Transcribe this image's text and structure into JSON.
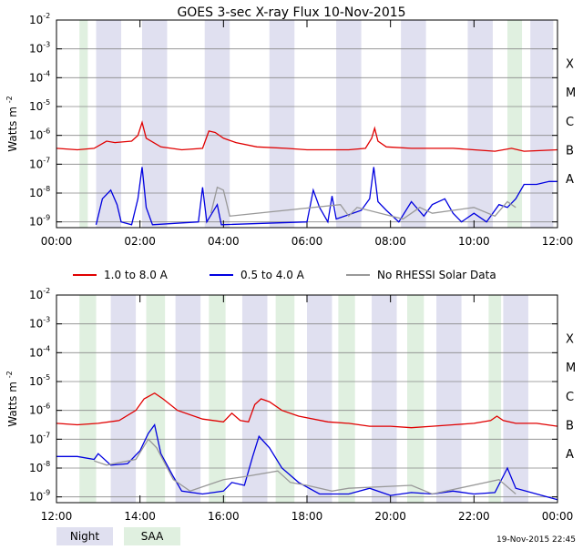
{
  "title": "GOES 3-sec X-ray Flux   10-Nov-2015",
  "ylabel": "Watts m",
  "ylabel_sup": "-2",
  "timestamp": "19-Nov-2015 22:45",
  "yticks": [
    {
      "exp": "-2",
      "value": -2
    },
    {
      "exp": "-3",
      "value": -3
    },
    {
      "exp": "-4",
      "value": -4
    },
    {
      "exp": "-5",
      "value": -5
    },
    {
      "exp": "-6",
      "value": -6
    },
    {
      "exp": "-7",
      "value": -7
    },
    {
      "exp": "-8",
      "value": -8
    },
    {
      "exp": "-9",
      "value": -9
    }
  ],
  "flare_classes": [
    {
      "label": "X",
      "value": -3.5
    },
    {
      "label": "M",
      "value": -4.5
    },
    {
      "label": "C",
      "value": -5.5
    },
    {
      "label": "B",
      "value": -6.5
    },
    {
      "label": "A",
      "value": -7.5
    }
  ],
  "legend": [
    {
      "label": "1.0 to 8.0 A",
      "color": "#e00000"
    },
    {
      "label": "0.5 to 4.0 A",
      "color": "#0000e0"
    },
    {
      "label": "No RHESSI Solar Data",
      "color": "#999999"
    }
  ],
  "bottom_legend": [
    {
      "label": "Night",
      "color": "#e0e0f0"
    },
    {
      "label": "SAA",
      "color": "#e0f0e0"
    }
  ],
  "chart_data": [
    {
      "type": "line",
      "title": "GOES 3-sec X-ray Flux   10-Nov-2015",
      "ylabel": "Watts m^-2",
      "yscale": "log",
      "ylim": [
        -9.2,
        -2
      ],
      "xlim_hours": [
        0,
        12
      ],
      "xticks": [
        "00:00",
        "02:00",
        "04:00",
        "06:00",
        "08:00",
        "10:00",
        "12:00"
      ],
      "night_bands": [
        [
          0.95,
          1.55
        ],
        [
          2.05,
          2.65
        ],
        [
          3.55,
          4.15
        ],
        [
          5.1,
          5.7
        ],
        [
          6.7,
          7.3
        ],
        [
          8.25,
          8.85
        ],
        [
          9.85,
          10.45
        ],
        [
          11.35,
          11.9
        ]
      ],
      "saa_bands": [
        [
          0.55,
          0.75
        ],
        [
          10.8,
          11.15
        ]
      ],
      "series": [
        {
          "name": "1.0 to 8.0 A",
          "color": "#e00000",
          "points": [
            [
              0,
              -6.45
            ],
            [
              0.5,
              -6.5
            ],
            [
              0.9,
              -6.45
            ],
            [
              1.2,
              -6.2
            ],
            [
              1.4,
              -6.25
            ],
            [
              1.8,
              -6.2
            ],
            [
              1.95,
              -6.0
            ],
            [
              2.05,
              -5.55
            ],
            [
              2.15,
              -6.1
            ],
            [
              2.5,
              -6.4
            ],
            [
              3.0,
              -6.5
            ],
            [
              3.5,
              -6.45
            ],
            [
              3.65,
              -5.85
            ],
            [
              3.8,
              -5.9
            ],
            [
              4.0,
              -6.1
            ],
            [
              4.3,
              -6.25
            ],
            [
              4.8,
              -6.4
            ],
            [
              5.5,
              -6.45
            ],
            [
              6.0,
              -6.5
            ],
            [
              6.5,
              -6.5
            ],
            [
              7.0,
              -6.5
            ],
            [
              7.4,
              -6.45
            ],
            [
              7.55,
              -6.1
            ],
            [
              7.62,
              -5.75
            ],
            [
              7.7,
              -6.2
            ],
            [
              7.9,
              -6.4
            ],
            [
              8.5,
              -6.45
            ],
            [
              9.0,
              -6.45
            ],
            [
              9.5,
              -6.45
            ],
            [
              10.0,
              -6.5
            ],
            [
              10.5,
              -6.55
            ],
            [
              10.9,
              -6.45
            ],
            [
              11.2,
              -6.55
            ],
            [
              12.0,
              -6.5
            ]
          ]
        },
        {
          "name": "0.5 to 4.0 A",
          "color": "#0000e0",
          "points": [
            [
              0.95,
              -9.1
            ],
            [
              1.1,
              -8.2
            ],
            [
              1.3,
              -7.9
            ],
            [
              1.45,
              -8.4
            ],
            [
              1.55,
              -9.0
            ],
            [
              1.8,
              -9.1
            ],
            [
              1.95,
              -8.2
            ],
            [
              2.05,
              -7.1
            ],
            [
              2.15,
              -8.5
            ],
            [
              2.3,
              -9.1
            ],
            [
              3.4,
              -9.0
            ],
            [
              3.5,
              -7.8
            ],
            [
              3.6,
              -9.0
            ],
            [
              3.85,
              -8.4
            ],
            [
              3.95,
              -9.1
            ],
            [
              6.0,
              -9.0
            ],
            [
              6.15,
              -7.9
            ],
            [
              6.3,
              -8.5
            ],
            [
              6.5,
              -9.0
            ],
            [
              6.6,
              -8.1
            ],
            [
              6.7,
              -8.9
            ],
            [
              7.3,
              -8.6
            ],
            [
              7.5,
              -8.2
            ],
            [
              7.6,
              -7.1
            ],
            [
              7.7,
              -8.3
            ],
            [
              7.9,
              -8.6
            ],
            [
              8.2,
              -9.0
            ],
            [
              8.5,
              -8.3
            ],
            [
              8.8,
              -8.8
            ],
            [
              9.0,
              -8.4
            ],
            [
              9.3,
              -8.2
            ],
            [
              9.5,
              -8.7
            ],
            [
              9.7,
              -9.0
            ],
            [
              10.0,
              -8.7
            ],
            [
              10.3,
              -9.0
            ],
            [
              10.6,
              -8.4
            ],
            [
              10.8,
              -8.5
            ],
            [
              11.0,
              -8.2
            ],
            [
              11.2,
              -7.7
            ],
            [
              11.5,
              -7.7
            ],
            [
              11.8,
              -7.6
            ],
            [
              12.0,
              -7.6
            ]
          ]
        },
        {
          "name": "No RHESSI Solar Data",
          "color": "#999999",
          "points": [
            [
              3.7,
              -8.7
            ],
            [
              3.85,
              -7.8
            ],
            [
              4.0,
              -7.9
            ],
            [
              4.15,
              -8.8
            ],
            [
              6.8,
              -8.4
            ],
            [
              7.0,
              -8.8
            ],
            [
              7.2,
              -8.5
            ],
            [
              8.3,
              -8.9
            ],
            [
              8.7,
              -8.5
            ],
            [
              9.0,
              -8.7
            ],
            [
              10.0,
              -8.5
            ],
            [
              10.5,
              -8.8
            ],
            [
              10.8,
              -8.3
            ],
            [
              11.0,
              -8.5
            ]
          ]
        }
      ]
    },
    {
      "type": "line",
      "title": "",
      "ylabel": "Watts m^-2",
      "yscale": "log",
      "ylim": [
        -9.2,
        -2
      ],
      "xlim_hours": [
        12,
        24
      ],
      "xticks": [
        "12:00",
        "14:00",
        "16:00",
        "18:00",
        "20:00",
        "22:00",
        "00:00"
      ],
      "night_bands": [
        [
          13.3,
          13.9
        ],
        [
          14.85,
          15.45
        ],
        [
          16.45,
          17.05
        ],
        [
          18.0,
          18.6
        ],
        [
          19.55,
          20.15
        ],
        [
          21.1,
          21.7
        ],
        [
          22.7,
          23.3
        ]
      ],
      "saa_bands": [
        [
          12.55,
          12.95
        ],
        [
          14.15,
          14.6
        ],
        [
          15.65,
          16.05
        ],
        [
          17.25,
          17.7
        ],
        [
          18.75,
          19.15
        ],
        [
          20.4,
          20.8
        ],
        [
          22.35,
          22.65
        ]
      ],
      "series": [
        {
          "name": "1.0 to 8.0 A",
          "color": "#e00000",
          "points": [
            [
              12.0,
              -6.45
            ],
            [
              12.5,
              -6.5
            ],
            [
              13.0,
              -6.45
            ],
            [
              13.5,
              -6.35
            ],
            [
              13.9,
              -6.0
            ],
            [
              14.1,
              -5.6
            ],
            [
              14.35,
              -5.4
            ],
            [
              14.55,
              -5.6
            ],
            [
              14.9,
              -6.0
            ],
            [
              15.5,
              -6.3
            ],
            [
              16.0,
              -6.4
            ],
            [
              16.2,
              -6.1
            ],
            [
              16.4,
              -6.35
            ],
            [
              16.6,
              -6.4
            ],
            [
              16.75,
              -5.8
            ],
            [
              16.9,
              -5.6
            ],
            [
              17.1,
              -5.7
            ],
            [
              17.4,
              -6.0
            ],
            [
              17.8,
              -6.2
            ],
            [
              18.5,
              -6.4
            ],
            [
              19.0,
              -6.45
            ],
            [
              19.5,
              -6.55
            ],
            [
              20.0,
              -6.55
            ],
            [
              20.5,
              -6.6
            ],
            [
              21.0,
              -6.55
            ],
            [
              21.5,
              -6.5
            ],
            [
              22.0,
              -6.45
            ],
            [
              22.4,
              -6.35
            ],
            [
              22.55,
              -6.2
            ],
            [
              22.7,
              -6.35
            ],
            [
              23.0,
              -6.45
            ],
            [
              23.5,
              -6.45
            ],
            [
              24.0,
              -6.55
            ]
          ]
        },
        {
          "name": "0.5 to 4.0 A",
          "color": "#0000e0",
          "points": [
            [
              12.0,
              -7.6
            ],
            [
              12.5,
              -7.6
            ],
            [
              12.9,
              -7.7
            ],
            [
              13.0,
              -7.5
            ],
            [
              13.3,
              -7.9
            ],
            [
              13.7,
              -7.85
            ],
            [
              14.0,
              -7.4
            ],
            [
              14.2,
              -6.8
            ],
            [
              14.35,
              -6.5
            ],
            [
              14.5,
              -7.5
            ],
            [
              14.8,
              -8.3
            ],
            [
              15.0,
              -8.8
            ],
            [
              15.5,
              -8.9
            ],
            [
              16.0,
              -8.8
            ],
            [
              16.2,
              -8.5
            ],
            [
              16.5,
              -8.6
            ],
            [
              16.7,
              -7.6
            ],
            [
              16.85,
              -6.9
            ],
            [
              17.1,
              -7.3
            ],
            [
              17.4,
              -8.0
            ],
            [
              17.8,
              -8.5
            ],
            [
              18.3,
              -8.9
            ],
            [
              19.0,
              -8.9
            ],
            [
              19.5,
              -8.7
            ],
            [
              20.0,
              -8.95
            ],
            [
              20.5,
              -8.85
            ],
            [
              21.0,
              -8.9
            ],
            [
              21.5,
              -8.8
            ],
            [
              22.0,
              -8.9
            ],
            [
              22.5,
              -8.85
            ],
            [
              22.8,
              -8.0
            ],
            [
              23.0,
              -8.7
            ],
            [
              23.5,
              -8.9
            ],
            [
              24.0,
              -9.1
            ]
          ]
        },
        {
          "name": "No RHESSI Solar Data",
          "color": "#999999",
          "points": [
            [
              12.9,
              -7.75
            ],
            [
              13.2,
              -7.9
            ],
            [
              13.9,
              -7.7
            ],
            [
              14.2,
              -7.0
            ],
            [
              14.4,
              -7.3
            ],
            [
              14.8,
              -8.4
            ],
            [
              15.2,
              -8.8
            ],
            [
              15.6,
              -8.6
            ],
            [
              16.0,
              -8.4
            ],
            [
              16.5,
              -8.3
            ],
            [
              17.3,
              -8.1
            ],
            [
              17.6,
              -8.5
            ],
            [
              18.0,
              -8.6
            ],
            [
              18.6,
              -8.8
            ],
            [
              19.0,
              -8.7
            ],
            [
              20.5,
              -8.6
            ],
            [
              21.0,
              -8.9
            ],
            [
              22.6,
              -8.4
            ],
            [
              23.0,
              -8.9
            ]
          ]
        }
      ]
    }
  ]
}
